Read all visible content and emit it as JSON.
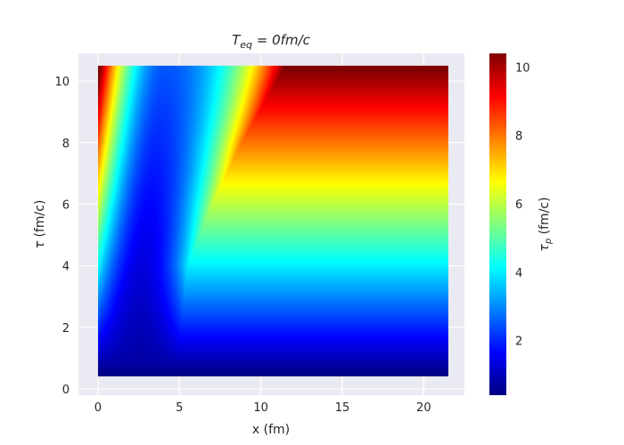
{
  "chart_data": {
    "type": "heatmap",
    "title": "T_eq = 0fm/c",
    "title_parts": {
      "main": "T",
      "sub": "eq",
      "rest": " = 0fm/c"
    },
    "xlabel": "x (fm)",
    "ylabel_parts": {
      "symbol": "τ",
      "unit": " (fm/c)"
    },
    "colorbar_label_parts": {
      "symbol": "τ",
      "sub": "p",
      "unit": " (fm/c)"
    },
    "xlim": [
      -1.2,
      22.5
    ],
    "ylim": [
      -0.2,
      10.9
    ],
    "x_range": [
      0,
      21.5
    ],
    "y_range": [
      0.4,
      10.5
    ],
    "xticks": [
      0,
      5,
      10,
      15,
      20
    ],
    "xtick_labels": [
      "0",
      "5",
      "10",
      "15",
      "20"
    ],
    "yticks": [
      0,
      2,
      4,
      6,
      8,
      10
    ],
    "ytick_labels": [
      "0",
      "2",
      "4",
      "6",
      "8",
      "10"
    ],
    "colorbar_range": [
      0.4,
      10.4
    ],
    "colorbar_ticks": [
      2,
      4,
      6,
      8,
      10
    ],
    "colorbar_tick_labels": [
      "2",
      "4",
      "6",
      "8",
      "10"
    ],
    "colormap": "jet",
    "grid": true,
    "description_values": {
      "valley_min_x": [
        2.5,
        3.0,
        4.0
      ],
      "front_x_at_tau": [
        [
          4,
          5.5
        ],
        [
          6,
          7.0
        ],
        [
          8,
          8.8
        ],
        [
          10.5,
          11.5
        ]
      ]
    }
  },
  "colors": {
    "axes_background": "#eaeaf2",
    "grid": "#ffffff",
    "text": "#262626"
  }
}
